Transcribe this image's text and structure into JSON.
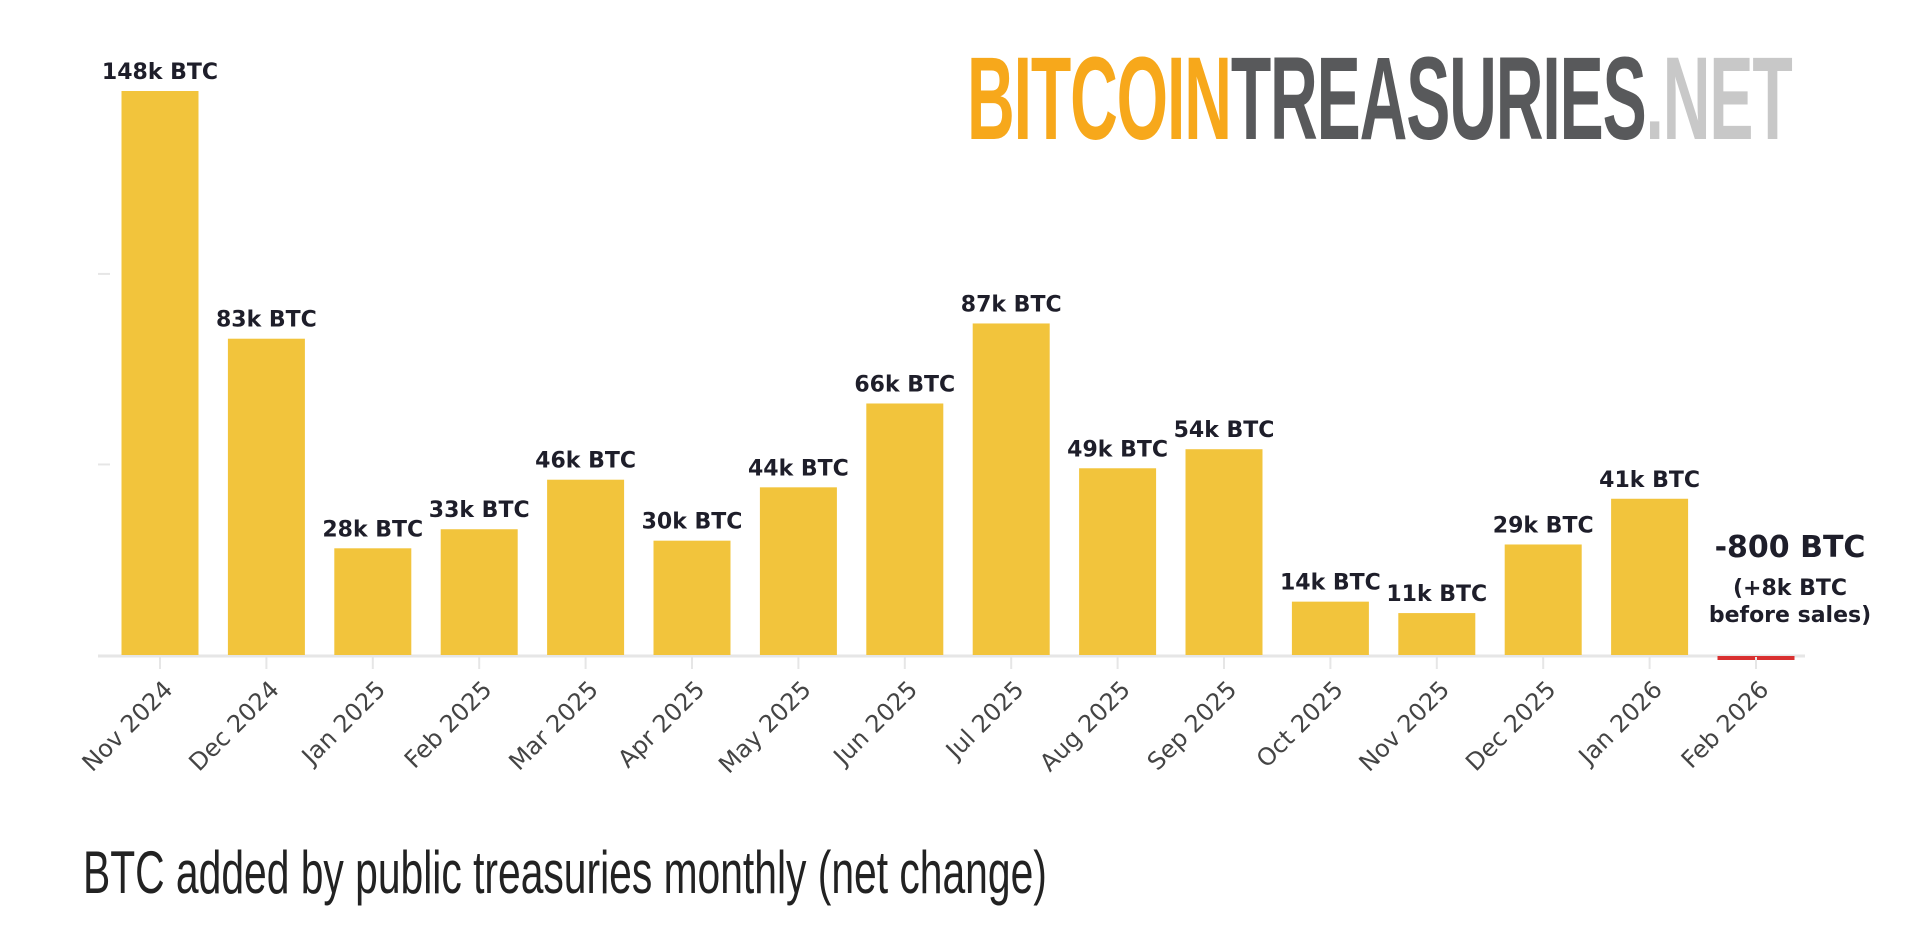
{
  "logo": {
    "part1": "BITCOIN",
    "part2": "TREASURIES",
    "part3": ".NET"
  },
  "chart_data": {
    "type": "bar",
    "title": "BTC added by public treasuries monthly (net change)",
    "xlabel": "",
    "ylabel": "",
    "ylim": [
      0,
      150
    ],
    "unit": "k BTC",
    "grid": false,
    "categories": [
      "Nov 2024",
      "Dec 2024",
      "Jan 2025",
      "Feb 2025",
      "Mar 2025",
      "Apr 2025",
      "May 2025",
      "Jun 2025",
      "Jul 2025",
      "Aug 2025",
      "Sep 2025",
      "Oct 2025",
      "Nov 2025",
      "Dec 2025",
      "Jan 2026",
      "Feb 2026"
    ],
    "values": [
      148,
      83,
      28,
      33,
      46,
      30,
      44,
      66,
      87,
      49,
      54,
      14,
      11,
      29,
      41,
      -0.8
    ],
    "data_labels": [
      "148k BTC",
      "83k BTC",
      "28k BTC",
      "33k BTC",
      "46k BTC",
      "30k BTC",
      "44k BTC",
      "66k BTC",
      "87k BTC",
      "49k BTC",
      "54k BTC",
      "14k BTC",
      "11k BTC",
      "29k BTC",
      "41k BTC",
      ""
    ],
    "annotation": {
      "main": "-800 BTC",
      "line1": "(+8k BTC",
      "line2": "before sales)"
    },
    "colors": {
      "positive": "#f2c43c",
      "negative": "#d93030",
      "axis": "#e6e6e6",
      "text": "#1e1e2a"
    }
  }
}
